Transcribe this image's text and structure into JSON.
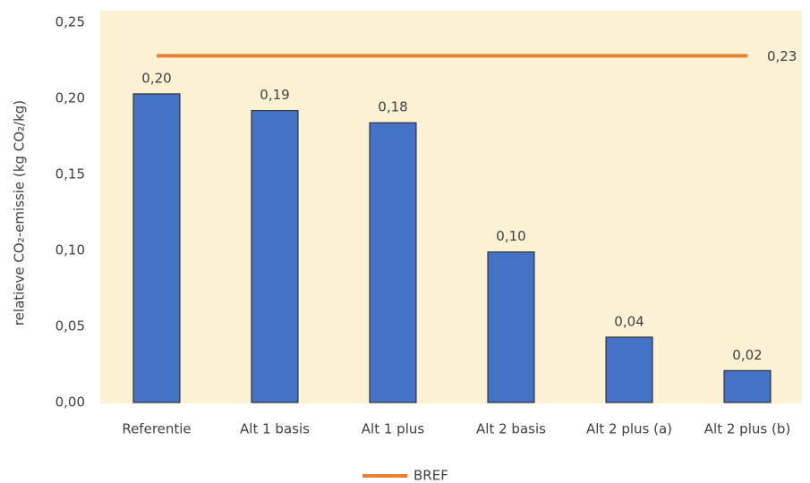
{
  "chart_data": {
    "type": "bar",
    "y_label": "relatieve CO₂-emissie (kg CO₂/kg)",
    "categories": [
      "Referentie",
      "Alt 1 basis",
      "Alt 1 plus",
      "Alt 2 basis",
      "Alt 2 plus (a)",
      "Alt 2 plus (b)"
    ],
    "series": [
      {
        "type": "bar",
        "color": "#4472c4",
        "values": [
          0.203,
          0.192,
          0.184,
          0.099,
          0.043,
          0.021
        ],
        "value_labels": [
          "0,20",
          "0,19",
          "0,18",
          "0,10",
          "0,04",
          "0,02"
        ]
      },
      {
        "type": "line",
        "name": "BREF",
        "color": "#ed7d31",
        "values": [
          0.228,
          0.228,
          0.228,
          0.228,
          0.228,
          0.228
        ],
        "value_labels": [
          null,
          null,
          null,
          null,
          null,
          "0,23"
        ]
      }
    ],
    "ylim": [
      0,
      0.25
    ],
    "yticks": [
      {
        "value": 0,
        "label": "0,00"
      },
      {
        "value": 0.05,
        "label": "0,05"
      },
      {
        "value": 0.1,
        "label": "0,10"
      },
      {
        "value": 0.15,
        "label": "0,15"
      },
      {
        "value": 0.2,
        "label": "0,20"
      },
      {
        "value": 0.25,
        "label": "0,25"
      }
    ],
    "plot_background": "#fdf1d3",
    "legend": "bottom"
  }
}
